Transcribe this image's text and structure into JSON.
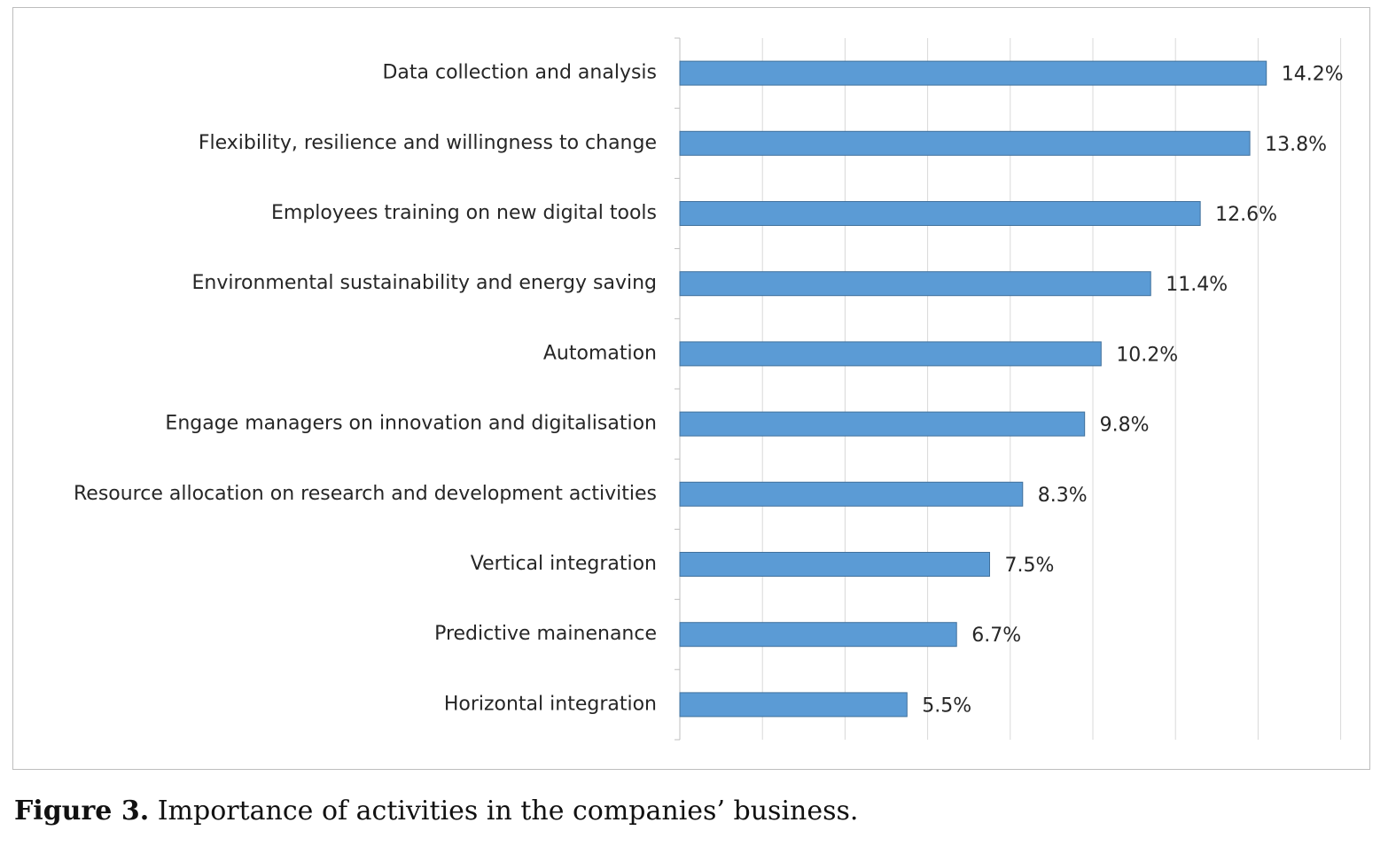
{
  "chart_data": {
    "type": "bar",
    "orientation": "horizontal",
    "categories": [
      "Data collection and analysis",
      "Flexibility, resilience and willingness to change",
      "Employees training on new digital tools",
      "Environmental sustainability and energy saving",
      "Automation",
      "Engage managers on innovation and digitalisation",
      "Resource allocation on research and development activities",
      "Vertical integration",
      "Predictive mainenance",
      "Horizontal integration"
    ],
    "values": [
      14.2,
      13.8,
      12.6,
      11.4,
      10.2,
      9.8,
      8.3,
      7.5,
      6.7,
      5.5
    ],
    "data_labels": [
      "14.2%",
      "13.8%",
      "12.6%",
      "11.4%",
      "10.2%",
      "9.8%",
      "8.3%",
      "7.5%",
      "6.7%",
      "5.5%"
    ],
    "xlim": [
      0,
      16
    ],
    "grid": true,
    "bar_color": "#5b9bd5"
  },
  "caption": {
    "number": "Figure 3.",
    "text": "Importance of activities in the companies’ business."
  }
}
